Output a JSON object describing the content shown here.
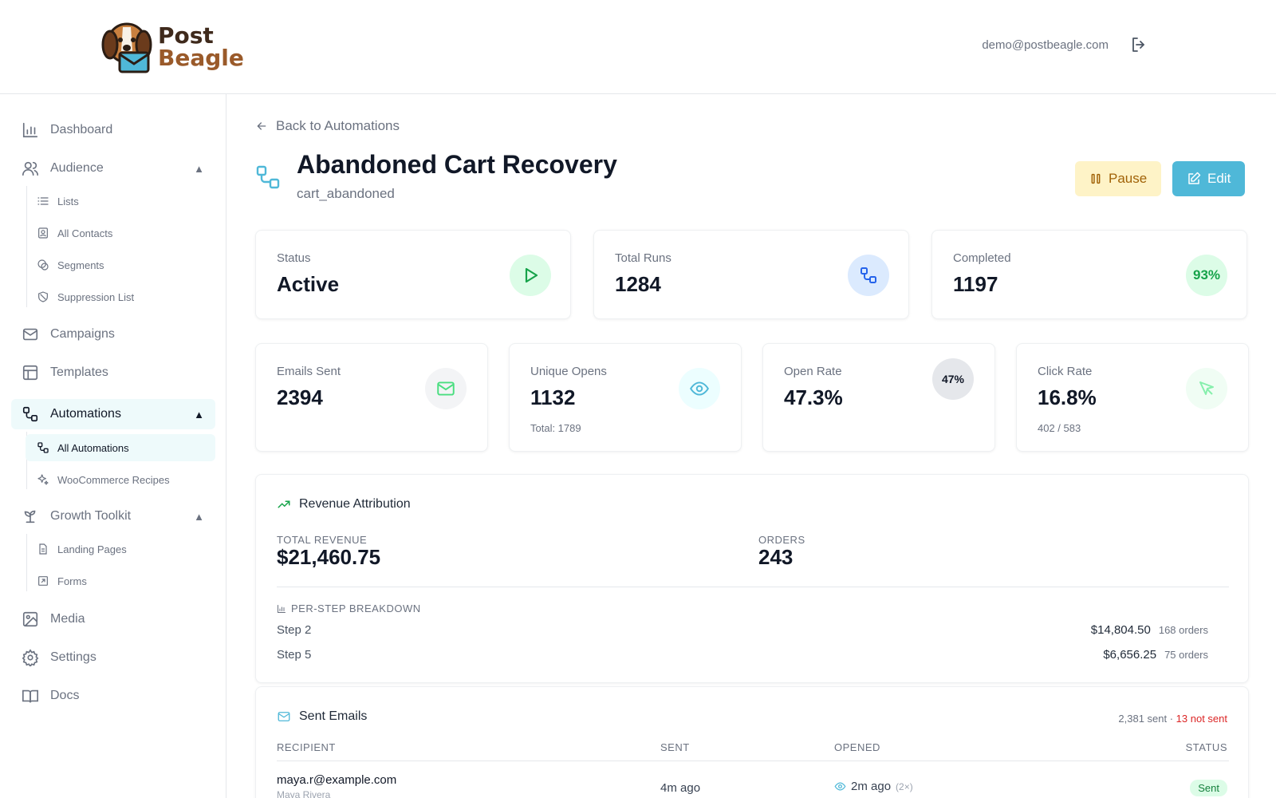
{
  "header": {
    "logo_line1": "Post",
    "logo_line2": "Beagle",
    "user_email": "demo@postbeagle.com"
  },
  "sidebar": {
    "dashboard": "Dashboard",
    "audience": "Audience",
    "audience_sub": [
      "Lists",
      "All Contacts",
      "Segments",
      "Suppression List"
    ],
    "campaigns": "Campaigns",
    "templates": "Templates",
    "automations": "Automations",
    "automations_sub": [
      "All Automations",
      "WooCommerce Recipes"
    ],
    "growth": "Growth Toolkit",
    "growth_sub": [
      "Landing Pages",
      "Forms"
    ],
    "media": "Media",
    "settings": "Settings",
    "docs": "Docs",
    "caret": "▲"
  },
  "page": {
    "back_label": "Back to Automations",
    "title": "Abandoned Cart Recovery",
    "subtitle": "cart_abandoned",
    "pause_label": "Pause",
    "edit_label": "Edit"
  },
  "stats_top": [
    {
      "label": "Status",
      "value": "Active"
    },
    {
      "label": "Total Runs",
      "value": "1284"
    },
    {
      "label": "Completed",
      "value": "1197",
      "badge": "93%"
    }
  ],
  "stats_bottom": [
    {
      "label": "Emails Sent",
      "value": "2394"
    },
    {
      "label": "Unique Opens",
      "value": "1132",
      "note": "Total: 1789"
    },
    {
      "label": "Open Rate",
      "value": "47.3%",
      "badge": "47%"
    },
    {
      "label": "Click Rate",
      "value": "16.8%",
      "note": "402 / 583"
    }
  ],
  "revenue": {
    "title": "Revenue Attribution",
    "total_label": "TOTAL REVENUE",
    "total_value": "$21,460.75",
    "orders_label": "ORDERS",
    "orders_value": "243",
    "breakdown_label": "PER-STEP BREAKDOWN",
    "steps": [
      {
        "name": "Step 2",
        "amount": "$14,804.50",
        "orders": "168 orders"
      },
      {
        "name": "Step 5",
        "amount": "$6,656.25",
        "orders": "75 orders"
      }
    ]
  },
  "sent_emails": {
    "title": "Sent Emails",
    "summary_sent": "2,381 sent",
    "summary_sep": " · ",
    "summary_not_sent": "13 not sent",
    "columns": [
      "RECIPIENT",
      "SENT",
      "OPENED",
      "STATUS"
    ],
    "rows": [
      {
        "email": "maya.r@example.com",
        "name": "Maya Rivera",
        "sent": "4m ago",
        "opened": "2m ago",
        "opened_count": "(2×)",
        "status": "Sent"
      }
    ]
  },
  "colors": {
    "accent": "#4fb8d8",
    "pause_bg": "#fef3c7",
    "green": "#16a34a",
    "blue": "#2563eb",
    "red": "#dc2626"
  }
}
